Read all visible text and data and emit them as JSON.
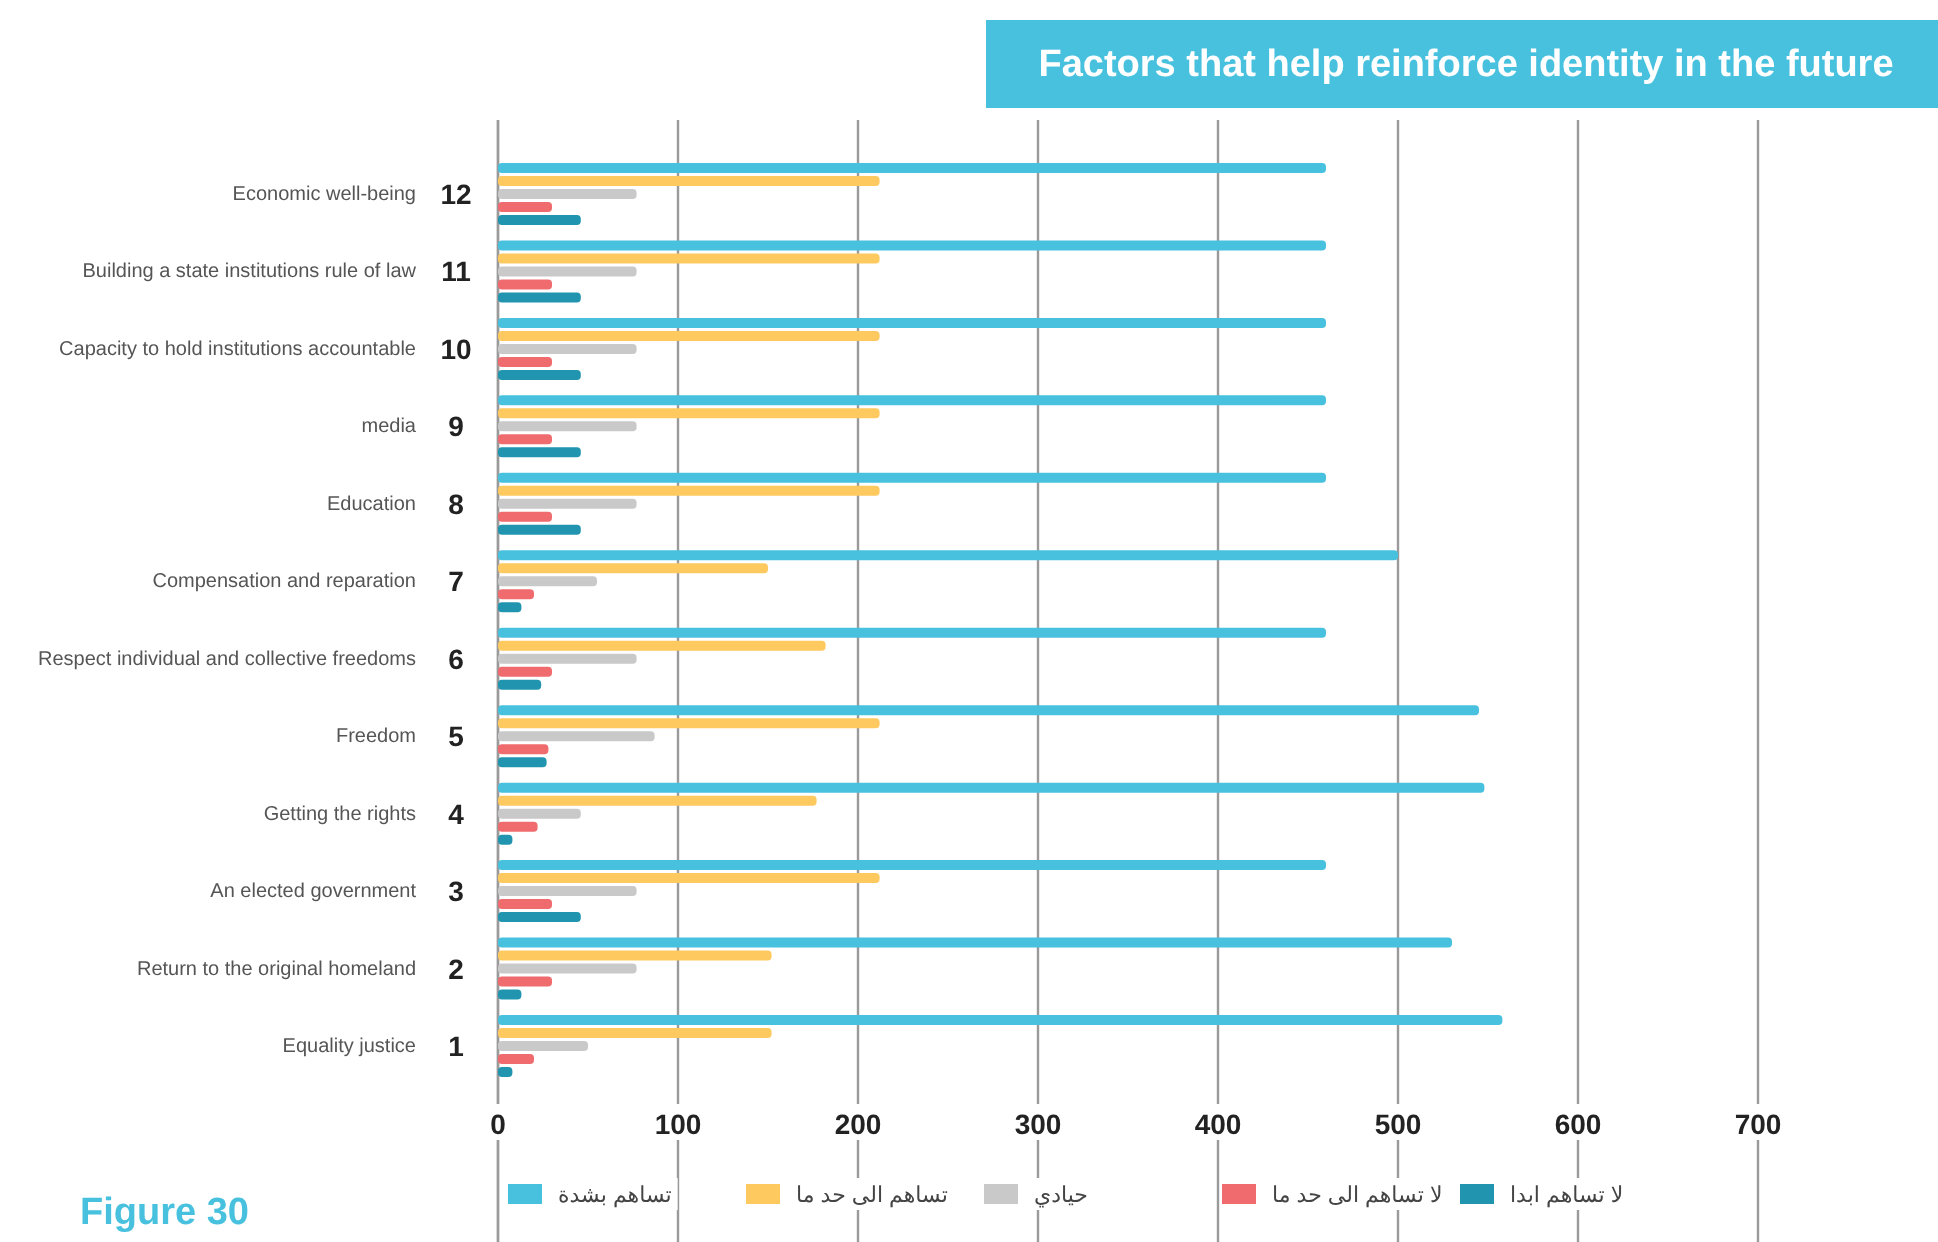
{
  "chart_data": {
    "type": "bar",
    "orientation": "horizontal",
    "title": "Factors that help reinforce identity in the future",
    "categories": [
      "Economic well-being",
      "Building a state institutions rule of law",
      "Capacity to hold institutions accountable",
      "media",
      "Education",
      "Compensation and reparation",
      "Respect individual and collective freedoms",
      "Freedom",
      "Getting the rights",
      "An elected government",
      "Return to the original homeland",
      "Equality justice"
    ],
    "series": [
      {
        "name": "تساهم بشدة",
        "color": "#48c1df",
        "values": [
          460,
          460,
          460,
          460,
          460,
          500,
          460,
          545,
          548,
          460,
          530,
          558
        ]
      },
      {
        "name": "تساهم الى حد ما",
        "color": "#fec95f",
        "values": [
          212,
          212,
          212,
          212,
          212,
          150,
          182,
          212,
          177,
          212,
          152,
          152
        ]
      },
      {
        "name": "حيادي",
        "color": "#c9c9c9",
        "values": [
          77,
          77,
          77,
          77,
          77,
          55,
          77,
          87,
          46,
          77,
          77,
          50
        ]
      },
      {
        "name": "لا تساهم الى حد ما",
        "color": "#ef6b6e",
        "values": [
          30,
          30,
          30,
          30,
          30,
          20,
          30,
          28,
          22,
          30,
          30,
          20
        ]
      },
      {
        "name": "لا تساهم ابدا",
        "color": "#2195b0",
        "values": [
          46,
          46,
          46,
          46,
          46,
          13,
          24,
          27,
          8,
          46,
          13,
          8
        ]
      }
    ],
    "xlim": [
      0,
      700
    ],
    "xticks": [
      0,
      100,
      200,
      300,
      400,
      500,
      600,
      700
    ],
    "grid": "x",
    "legend": "bottom",
    "annotations": [
      "12",
      "11",
      "10",
      "9",
      "8",
      "7",
      "6",
      "5",
      "4",
      "3",
      "2",
      "1",
      "Figure 30"
    ]
  }
}
